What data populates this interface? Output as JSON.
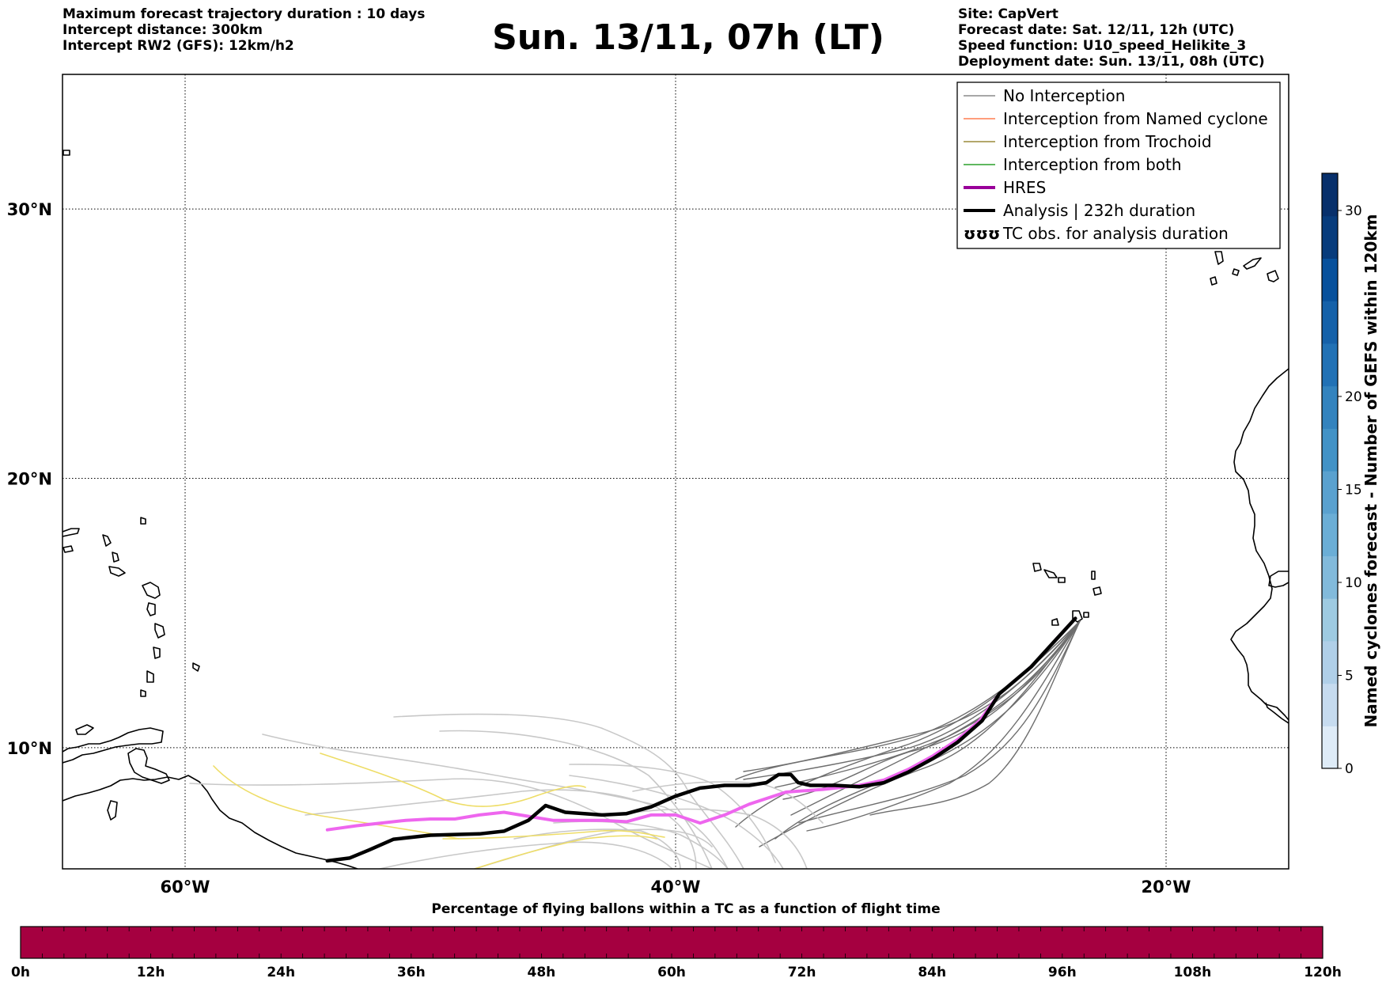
{
  "header": {
    "left_lines": [
      "Maximum forecast trajectory duration : 10 days",
      "Intercept distance: 300km",
      "Intercept RW2 (GFS):  12km/h2"
    ],
    "title": "Sun. 13/11, 07h (LT)",
    "right_lines": [
      "Site: CapVert",
      "Forecast date: Sat. 12/11, 12h (UTC)",
      "Speed function: U10_speed_Helikite_3",
      "Deployment date: Sun. 13/11, 08h (UTC)"
    ]
  },
  "map": {
    "lon_range": [
      -65,
      -15
    ],
    "lat_range": [
      5.5,
      35
    ],
    "lon_ticks": [
      {
        "value": -60,
        "label": "60°W"
      },
      {
        "value": -40,
        "label": "40°W"
      },
      {
        "value": -20,
        "label": "20°W"
      }
    ],
    "lat_ticks": [
      {
        "value": 30,
        "label": "30°N"
      },
      {
        "value": 20,
        "label": "20°N"
      },
      {
        "value": 10,
        "label": "10°N"
      }
    ],
    "grid": "dotted",
    "colors": {
      "coast": "#000000",
      "no_interception": "#8a8a8a",
      "named_cyclone": "#ff7f50",
      "trochoid": "#9a8a3a",
      "both": "#2ca02c",
      "hres": "#ee66ee",
      "analysis": "#000000",
      "light_track": "#c8c8c8",
      "yellow_track": "#eedd66",
      "dark_track": "#6e6e6e"
    },
    "tracks": {
      "analysis": [
        [
          -23.7,
          14.8
        ],
        [
          -24.5,
          14.0
        ],
        [
          -25.5,
          13.0
        ],
        [
          -26.8,
          12.0
        ],
        [
          -27.5,
          11.0
        ],
        [
          -28.5,
          10.2
        ],
        [
          -29.5,
          9.6
        ],
        [
          -30.5,
          9.1
        ],
        [
          -31.5,
          8.7
        ],
        [
          -32.5,
          8.55
        ],
        [
          -33.5,
          8.6
        ],
        [
          -34.5,
          8.6
        ],
        [
          -35.0,
          8.7
        ],
        [
          -35.3,
          9.0
        ],
        [
          -35.8,
          9.0
        ],
        [
          -36.3,
          8.7
        ],
        [
          -37.0,
          8.6
        ],
        [
          -38.0,
          8.6
        ],
        [
          -39.0,
          8.5
        ],
        [
          -40.0,
          8.2
        ],
        [
          -41.0,
          7.8
        ],
        [
          -42.0,
          7.55
        ],
        [
          -43.0,
          7.5
        ],
        [
          -44.5,
          7.6
        ],
        [
          -45.3,
          7.85
        ],
        [
          -46.0,
          7.3
        ],
        [
          -47.0,
          6.9
        ],
        [
          -48.0,
          6.8
        ],
        [
          -50.0,
          6.75
        ],
        [
          -51.5,
          6.6
        ],
        [
          -52.5,
          6.2
        ],
        [
          -53.3,
          5.9
        ],
        [
          -54.2,
          5.8
        ]
      ],
      "hres": [
        [
          -23.7,
          14.8
        ],
        [
          -24.5,
          14.0
        ],
        [
          -25.5,
          13.0
        ],
        [
          -26.8,
          12.0
        ],
        [
          -27.6,
          11.0
        ],
        [
          -28.5,
          10.3
        ],
        [
          -29.5,
          9.7
        ],
        [
          -30.5,
          9.2
        ],
        [
          -31.5,
          8.8
        ],
        [
          -32.5,
          8.6
        ],
        [
          -34.0,
          8.45
        ],
        [
          -35.5,
          8.35
        ],
        [
          -37.0,
          7.9
        ],
        [
          -38.0,
          7.5
        ],
        [
          -39.0,
          7.2
        ],
        [
          -40.0,
          7.5
        ],
        [
          -41.0,
          7.5
        ],
        [
          -42.0,
          7.25
        ],
        [
          -43.0,
          7.3
        ],
        [
          -44.0,
          7.3
        ],
        [
          -45.0,
          7.3
        ],
        [
          -46.0,
          7.45
        ],
        [
          -47.0,
          7.6
        ],
        [
          -48.0,
          7.5
        ],
        [
          -49.0,
          7.35
        ],
        [
          -50.0,
          7.35
        ],
        [
          -51.0,
          7.3
        ],
        [
          -52.0,
          7.2
        ],
        [
          -53.0,
          7.1
        ],
        [
          -54.2,
          6.95
        ]
      ]
    },
    "legend": {
      "items": [
        {
          "label": "No Interception",
          "style": "no_interception"
        },
        {
          "label": "Interception from Named cyclone",
          "style": "named_cyclone"
        },
        {
          "label": "Interception from Trochoid",
          "style": "trochoid"
        },
        {
          "label": "Interception from both",
          "style": "both"
        },
        {
          "label": "HRES",
          "style": "hres_legend"
        },
        {
          "label": "Analysis | 232h duration",
          "style": "analysis"
        },
        {
          "label": "TC obs. for analysis duration",
          "style": "tc_symbols",
          "symbol": "ʊʊʊ"
        }
      ]
    }
  },
  "colorbar_right": {
    "title": "Named cyclones forecast - Number of GEFS within 120km",
    "range": [
      0,
      32
    ],
    "ticks": [
      {
        "value": 0,
        "label": "0"
      },
      {
        "value": 5,
        "label": "5"
      },
      {
        "value": 10,
        "label": "10"
      },
      {
        "value": 15,
        "label": "15"
      },
      {
        "value": 20,
        "label": "20"
      },
      {
        "value": 30,
        "label": "30"
      }
    ],
    "colors": [
      "#deebf7",
      "#c6dbef",
      "#b0cfe8",
      "#9ecae1",
      "#82badb",
      "#6baed6",
      "#5aa1cf",
      "#4292c6",
      "#3383be",
      "#2171b5",
      "#1561a9",
      "#08519c",
      "#083c7c",
      "#08306b"
    ]
  },
  "colorbar_bottom": {
    "title": "Percentage of flying ballons within a TC as a function of flight time",
    "color": "#a50040",
    "ticks": [
      "0h",
      "12h",
      "24h",
      "36h",
      "48h",
      "60h",
      "72h",
      "84h",
      "96h",
      "108h",
      "120h"
    ]
  }
}
